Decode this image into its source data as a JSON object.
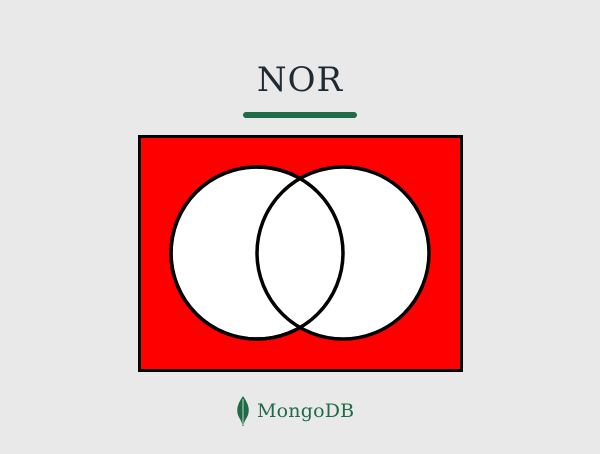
{
  "title": "NOR",
  "colors": {
    "background": "#e9e9e9",
    "accent": "#1f6b47",
    "fill_outside": "#ff0000",
    "circle_fill": "#ffffff",
    "stroke": "#000000"
  },
  "logo": {
    "text": "MongoDB",
    "icon": "mongodb-leaf-icon"
  }
}
